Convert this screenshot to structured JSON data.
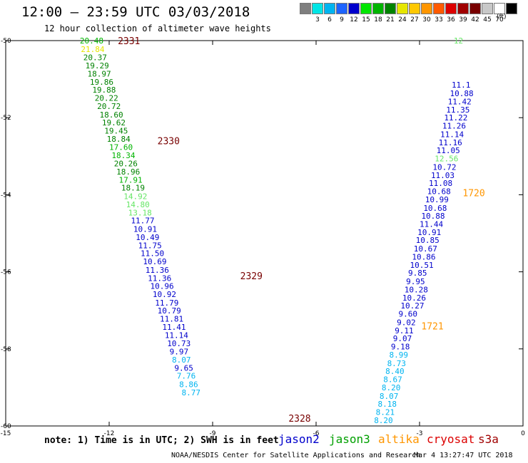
{
  "header": {
    "title": "12:00 — 23:59 UTC 03/03/2018",
    "subtitle": "12 hour collection of altimeter wave heights"
  },
  "colorbar": {
    "units": "(ft)",
    "bins": [
      {
        "label": "",
        "color": "#7f7f7f"
      },
      {
        "label": "3",
        "color": "#00e5e5"
      },
      {
        "label": "6",
        "color": "#00b4f0"
      },
      {
        "label": "9",
        "color": "#1e64ff"
      },
      {
        "label": "12",
        "color": "#0000cc"
      },
      {
        "label": "15",
        "color": "#00e600"
      },
      {
        "label": "18",
        "color": "#00b400"
      },
      {
        "label": "21",
        "color": "#008200"
      },
      {
        "label": "24",
        "color": "#e6e600"
      },
      {
        "label": "27",
        "color": "#ffc800"
      },
      {
        "label": "30",
        "color": "#ff9600"
      },
      {
        "label": "33",
        "color": "#ff5a00"
      },
      {
        "label": "36",
        "color": "#dc0000"
      },
      {
        "label": "39",
        "color": "#a00000"
      },
      {
        "label": "42",
        "color": "#780000"
      },
      {
        "label": "45",
        "color": "#c8c8c8"
      },
      {
        "label": "70",
        "color": "#ffffff"
      },
      {
        "label": "",
        "color": "#000000"
      }
    ]
  },
  "note": "note: 1) Time is in UTC; 2) SWH is in feet",
  "legend": [
    {
      "label": "jason2",
      "color": "#0000cc"
    },
    {
      "label": "jason3",
      "color": "#00a000"
    },
    {
      "label": "altika",
      "color": "#ff9600"
    },
    {
      "label": "cryosat",
      "color": "#dc0000"
    },
    {
      "label": "s3a",
      "color": "#a00000"
    }
  ],
  "footer": {
    "left": "NOAA/NESDIS Center for Satellite Applications and Research",
    "right": "Mar  4 13:27:47 UTC 2018"
  },
  "chart_data": {
    "type": "scatter",
    "xlim": [
      -15,
      0
    ],
    "ylim": [
      -60,
      -50
    ],
    "x_ticks": [
      -15,
      -12,
      -9,
      -6,
      -3,
      0
    ],
    "y_ticks": [
      -50,
      -52,
      -54,
      -56,
      -58,
      -60
    ],
    "series": [
      {
        "name": "track-left",
        "points": [
          {
            "x": -12.85,
            "y": -50.0,
            "label": "20.48",
            "color": "#00b400"
          },
          {
            "x": -12.82,
            "y": -50.22,
            "label": "21.84",
            "color": "#e6e600"
          },
          {
            "x": -12.75,
            "y": -50.43,
            "label": "20.37",
            "color": "#008200"
          },
          {
            "x": -12.69,
            "y": -50.65,
            "label": "19.29",
            "color": "#008200"
          },
          {
            "x": -12.63,
            "y": -50.86,
            "label": "18.97",
            "color": "#008200"
          },
          {
            "x": -12.56,
            "y": -51.07,
            "label": "19.86",
            "color": "#008200"
          },
          {
            "x": -12.49,
            "y": -51.28,
            "label": "19.88",
            "color": "#008200"
          },
          {
            "x": -12.42,
            "y": -51.49,
            "label": "20.22",
            "color": "#008200"
          },
          {
            "x": -12.35,
            "y": -51.7,
            "label": "20.72",
            "color": "#008200"
          },
          {
            "x": -12.28,
            "y": -51.92,
            "label": "18.60",
            "color": "#008200"
          },
          {
            "x": -12.21,
            "y": -52.13,
            "label": "19.62",
            "color": "#008200"
          },
          {
            "x": -12.14,
            "y": -52.34,
            "label": "19.45",
            "color": "#008200"
          },
          {
            "x": -12.07,
            "y": -52.55,
            "label": "18.84",
            "color": "#008200"
          },
          {
            "x": -12.0,
            "y": -52.76,
            "label": "17.60",
            "color": "#00b400"
          },
          {
            "x": -11.93,
            "y": -52.98,
            "label": "18.34",
            "color": "#00b400"
          },
          {
            "x": -11.86,
            "y": -53.19,
            "label": "20.26",
            "color": "#008200"
          },
          {
            "x": -11.79,
            "y": -53.4,
            "label": "18.96",
            "color": "#008200"
          },
          {
            "x": -11.72,
            "y": -53.61,
            "label": "17.91",
            "color": "#00b400"
          },
          {
            "x": -11.65,
            "y": -53.82,
            "label": "18.19",
            "color": "#008200"
          },
          {
            "x": -11.58,
            "y": -54.04,
            "label": "14.92",
            "color": "#66e666"
          },
          {
            "x": -11.51,
            "y": -54.25,
            "label": "14.80",
            "color": "#66e666"
          },
          {
            "x": -11.45,
            "y": -54.46,
            "label": "13.18",
            "color": "#66e666"
          },
          {
            "x": -11.37,
            "y": -54.67,
            "label": "11.77",
            "color": "#0000cc"
          },
          {
            "x": -11.3,
            "y": -54.89,
            "label": "10.91",
            "color": "#0000cc"
          },
          {
            "x": -11.23,
            "y": -55.1,
            "label": "10.49",
            "color": "#0000cc"
          },
          {
            "x": -11.16,
            "y": -55.31,
            "label": "11.75",
            "color": "#0000cc"
          },
          {
            "x": -11.09,
            "y": -55.52,
            "label": "11.50",
            "color": "#0000cc"
          },
          {
            "x": -11.02,
            "y": -55.73,
            "label": "10.69",
            "color": "#0000cc"
          },
          {
            "x": -10.95,
            "y": -55.95,
            "label": "11.36",
            "color": "#0000cc"
          },
          {
            "x": -10.88,
            "y": -56.16,
            "label": "11.36",
            "color": "#0000cc"
          },
          {
            "x": -10.81,
            "y": -56.37,
            "label": "10.96",
            "color": "#0000cc"
          },
          {
            "x": -10.74,
            "y": -56.58,
            "label": "10.92",
            "color": "#0000cc"
          },
          {
            "x": -10.67,
            "y": -56.8,
            "label": "11.79",
            "color": "#0000cc"
          },
          {
            "x": -10.6,
            "y": -57.01,
            "label": "10.79",
            "color": "#0000cc"
          },
          {
            "x": -10.53,
            "y": -57.22,
            "label": "11.81",
            "color": "#0000cc"
          },
          {
            "x": -10.46,
            "y": -57.43,
            "label": "11.41",
            "color": "#0000cc"
          },
          {
            "x": -10.39,
            "y": -57.64,
            "label": "11.14",
            "color": "#0000cc"
          },
          {
            "x": -10.32,
            "y": -57.86,
            "label": "10.73",
            "color": "#0000cc"
          },
          {
            "x": -10.25,
            "y": -58.07,
            "label": "9.97",
            "color": "#0000cc"
          },
          {
            "x": -10.18,
            "y": -58.28,
            "label": "8.07",
            "color": "#00b4f0"
          },
          {
            "x": -10.11,
            "y": -58.49,
            "label": "9.65",
            "color": "#0000cc"
          },
          {
            "x": -10.04,
            "y": -58.7,
            "label": "7.76",
            "color": "#00b4f0"
          },
          {
            "x": -9.97,
            "y": -58.92,
            "label": "8.86",
            "color": "#00b4f0"
          },
          {
            "x": -9.9,
            "y": -59.13,
            "label": "8.77",
            "color": "#00b4f0"
          }
        ]
      },
      {
        "name": "track-right",
        "points": [
          {
            "x": -4.32,
            "y": -59.85,
            "label": "8.20",
            "color": "#00b4f0"
          },
          {
            "x": -4.27,
            "y": -59.64,
            "label": "8.21",
            "color": "#00b4f0"
          },
          {
            "x": -4.21,
            "y": -59.43,
            "label": "8.18",
            "color": "#00b4f0"
          },
          {
            "x": -4.16,
            "y": -59.22,
            "label": "8.07",
            "color": "#00b4f0"
          },
          {
            "x": -4.1,
            "y": -59.0,
            "label": "8.20",
            "color": "#00b4f0"
          },
          {
            "x": -4.05,
            "y": -58.79,
            "label": "8.67",
            "color": "#00b4f0"
          },
          {
            "x": -3.99,
            "y": -58.58,
            "label": "8.40",
            "color": "#00b4f0"
          },
          {
            "x": -3.94,
            "y": -58.37,
            "label": "8.73",
            "color": "#00b4f0"
          },
          {
            "x": -3.88,
            "y": -58.15,
            "label": "8.99",
            "color": "#00b4f0"
          },
          {
            "x": -3.83,
            "y": -57.94,
            "label": "9.18",
            "color": "#0000cc"
          },
          {
            "x": -3.77,
            "y": -57.73,
            "label": "9.07",
            "color": "#0000cc"
          },
          {
            "x": -3.72,
            "y": -57.52,
            "label": "9.11",
            "color": "#0000cc"
          },
          {
            "x": -3.66,
            "y": -57.31,
            "label": "9.02",
            "color": "#0000cc"
          },
          {
            "x": -3.61,
            "y": -57.09,
            "label": "9.60",
            "color": "#0000cc"
          },
          {
            "x": -3.55,
            "y": -56.88,
            "label": "10.27",
            "color": "#0000cc"
          },
          {
            "x": -3.5,
            "y": -56.67,
            "label": "10.26",
            "color": "#0000cc"
          },
          {
            "x": -3.44,
            "y": -56.46,
            "label": "10.28",
            "color": "#0000cc"
          },
          {
            "x": -3.39,
            "y": -56.25,
            "label": "9.95",
            "color": "#0000cc"
          },
          {
            "x": -3.33,
            "y": -56.03,
            "label": "9.85",
            "color": "#0000cc"
          },
          {
            "x": -3.28,
            "y": -55.82,
            "label": "10.51",
            "color": "#0000cc"
          },
          {
            "x": -3.22,
            "y": -55.61,
            "label": "10.86",
            "color": "#0000cc"
          },
          {
            "x": -3.17,
            "y": -55.4,
            "label": "10.67",
            "color": "#0000cc"
          },
          {
            "x": -3.11,
            "y": -55.18,
            "label": "10.85",
            "color": "#0000cc"
          },
          {
            "x": -3.06,
            "y": -54.97,
            "label": "10.91",
            "color": "#0000cc"
          },
          {
            "x": -3.0,
            "y": -54.76,
            "label": "11.44",
            "color": "#0000cc"
          },
          {
            "x": -2.95,
            "y": -54.55,
            "label": "10.88",
            "color": "#0000cc"
          },
          {
            "x": -2.89,
            "y": -54.34,
            "label": "10.68",
            "color": "#0000cc"
          },
          {
            "x": -2.84,
            "y": -54.12,
            "label": "10.99",
            "color": "#0000cc"
          },
          {
            "x": -2.78,
            "y": -53.91,
            "label": "10.68",
            "color": "#0000cc"
          },
          {
            "x": -2.73,
            "y": -53.7,
            "label": "11.08",
            "color": "#0000cc"
          },
          {
            "x": -2.67,
            "y": -53.49,
            "label": "11.03",
            "color": "#0000cc"
          },
          {
            "x": -2.62,
            "y": -53.28,
            "label": "10.72",
            "color": "#0000cc"
          },
          {
            "x": -2.56,
            "y": -53.06,
            "label": "12.56",
            "color": "#66e666"
          },
          {
            "x": -2.51,
            "y": -52.85,
            "label": "11.05",
            "color": "#0000cc"
          },
          {
            "x": -2.45,
            "y": -52.64,
            "label": "11.16",
            "color": "#0000cc"
          },
          {
            "x": -2.4,
            "y": -52.43,
            "label": "11.14",
            "color": "#0000cc"
          },
          {
            "x": -2.34,
            "y": -52.21,
            "label": "11.26",
            "color": "#0000cc"
          },
          {
            "x": -2.29,
            "y": -52.0,
            "label": "11.22",
            "color": "#0000cc"
          },
          {
            "x": -2.23,
            "y": -51.79,
            "label": "11.35",
            "color": "#0000cc"
          },
          {
            "x": -2.18,
            "y": -51.58,
            "label": "11.42",
            "color": "#0000cc"
          },
          {
            "x": -2.12,
            "y": -51.37,
            "label": "10.88",
            "color": "#0000cc"
          },
          {
            "x": -2.07,
            "y": -51.15,
            "label": "11.1",
            "color": "#0000cc"
          },
          {
            "x": -2.01,
            "y": -50.0,
            "label": "12",
            "color": "#66e666"
          }
        ]
      }
    ],
    "annotations": [
      {
        "x": -11.75,
        "y": -50.0,
        "label": "2331",
        "color": "#780000"
      },
      {
        "x": -10.6,
        "y": -52.6,
        "label": "2330",
        "color": "#780000"
      },
      {
        "x": -8.2,
        "y": -56.1,
        "label": "2329",
        "color": "#780000"
      },
      {
        "x": -6.8,
        "y": -59.8,
        "label": "2328",
        "color": "#780000"
      },
      {
        "x": -1.75,
        "y": -53.95,
        "label": "1720",
        "color": "#ff9600"
      },
      {
        "x": -2.95,
        "y": -57.4,
        "label": "1721",
        "color": "#ff9600"
      }
    ]
  }
}
